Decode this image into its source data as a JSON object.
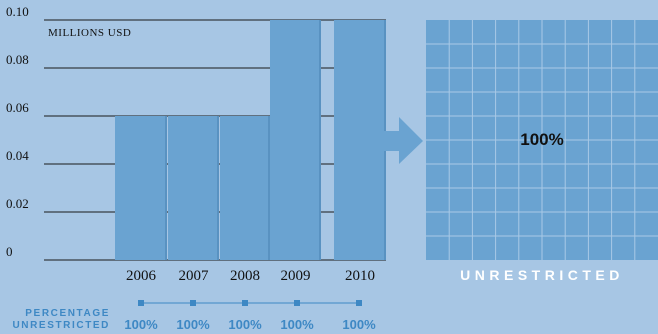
{
  "chart_data": {
    "type": "bar",
    "ylabel": "MILLIONS USD",
    "categories": [
      "2006",
      "2007",
      "2008",
      "2009",
      "2010"
    ],
    "values": [
      0.06,
      0.06,
      0.06,
      0.1,
      0.1
    ],
    "ylim": [
      0,
      0.1
    ],
    "yticks": [
      "0",
      "0.02",
      "0.04",
      "0.06",
      "0.08",
      "0.10"
    ],
    "ytick_values": [
      0,
      0.02,
      0.04,
      0.06,
      0.08,
      0.1
    ],
    "grid": true,
    "percentage_label_line1": "PERCENTAGE",
    "percentage_label_line2": "UNRESTRICTED",
    "percentages": [
      "100%",
      "100%",
      "100%",
      "100%",
      "100%"
    ],
    "unrestricted_grid": {
      "value_label": "100%",
      "fraction_unrestricted": 1.0,
      "caption": "UNRESTRICTED"
    }
  },
  "colors": {
    "background": "#a7c6e4",
    "bar": "#6aa3d1",
    "grid_fill": "#6aa3d1",
    "grid_lines": "#a9c9e6",
    "accent": "#3e88c4",
    "arrow": "#6aa3d1"
  }
}
